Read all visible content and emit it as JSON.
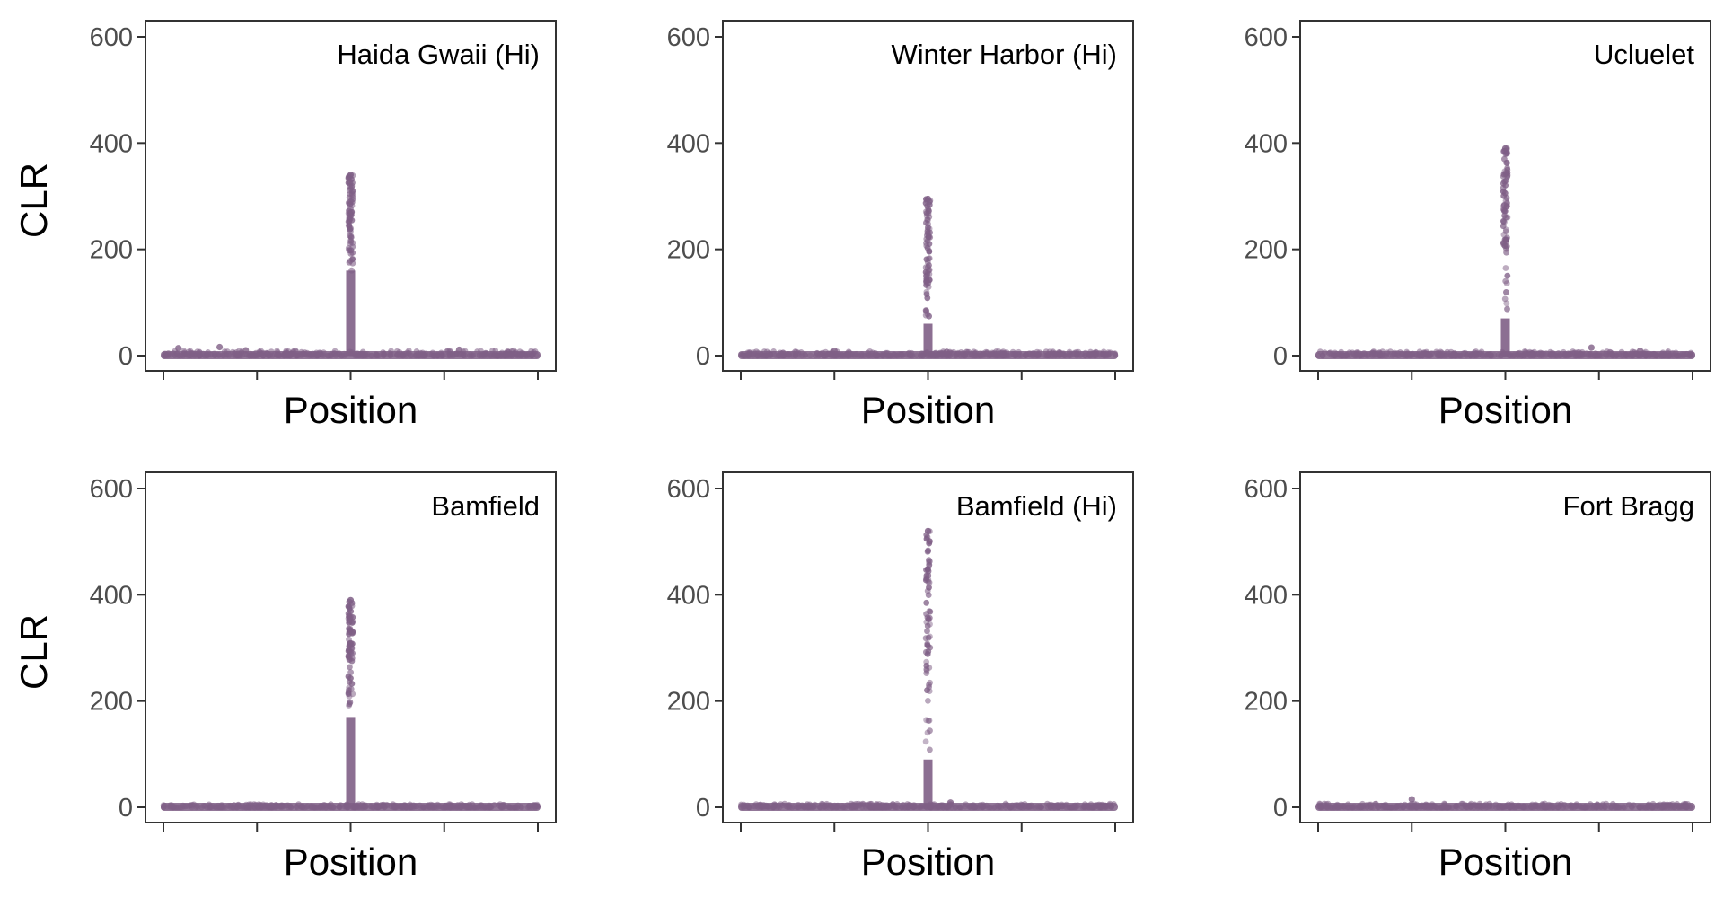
{
  "figure": {
    "point_color": "#7f5f86",
    "frame_color": "#333333",
    "tick_label_color": "#4d4d4d"
  },
  "chart_data": [
    {
      "type": "scatter",
      "title": "Haida Gwaii (Hi)",
      "xlabel": "Position",
      "ylabel": "CLR",
      "ylim": [
        0,
        630
      ],
      "y_ticks": [
        "0",
        "200",
        "400",
        "600"
      ],
      "x_tick_labels": [],
      "grid": false,
      "baseline_max": 10,
      "peak": {
        "position": 0.5,
        "max": 340,
        "dense_to": 160
      },
      "outliers": [
        {
          "x": 0.04,
          "y": 14
        },
        {
          "x": 0.15,
          "y": 16
        },
        {
          "x": 0.22,
          "y": 10
        },
        {
          "x": 0.79,
          "y": 11
        }
      ]
    },
    {
      "type": "scatter",
      "title": "Winter Harbor (Hi)",
      "xlabel": "Position",
      "ylabel": "",
      "ylim": [
        0,
        630
      ],
      "y_ticks": [
        "0",
        "200",
        "400",
        "600"
      ],
      "x_tick_labels": [],
      "grid": false,
      "baseline_max": 8,
      "peak": {
        "position": 0.5,
        "max": 295,
        "dense_to": 60
      },
      "outliers": [
        {
          "x": 0.25,
          "y": 9
        },
        {
          "x": 0.55,
          "y": 7
        }
      ]
    },
    {
      "type": "scatter",
      "title": "Ucluelet",
      "xlabel": "Position",
      "ylabel": "",
      "ylim": [
        0,
        630
      ],
      "y_ticks": [
        "0",
        "200",
        "400",
        "600"
      ],
      "x_tick_labels": [],
      "grid": false,
      "baseline_max": 8,
      "peak": {
        "position": 0.5,
        "max": 390,
        "dense_to": 70
      },
      "outliers": [
        {
          "x": 0.73,
          "y": 15
        },
        {
          "x": 0.86,
          "y": 9
        }
      ]
    },
    {
      "type": "scatter",
      "title": "Bamfield",
      "xlabel": "Position",
      "ylabel": "CLR",
      "ylim": [
        0,
        630
      ],
      "y_ticks": [
        "0",
        "200",
        "400",
        "600"
      ],
      "x_tick_labels": [],
      "grid": false,
      "baseline_max": 6,
      "peak": {
        "position": 0.5,
        "max": 390,
        "dense_to": 170
      },
      "outliers": []
    },
    {
      "type": "scatter",
      "title": "Bamfield (Hi)",
      "xlabel": "Position",
      "ylabel": "",
      "ylim": [
        0,
        630
      ],
      "y_ticks": [
        "0",
        "200",
        "400",
        "600"
      ],
      "x_tick_labels": [],
      "grid": false,
      "baseline_max": 7,
      "peak": {
        "position": 0.5,
        "max": 520,
        "dense_to": 90
      },
      "outliers": [
        {
          "x": 0.56,
          "y": 9
        }
      ]
    },
    {
      "type": "scatter",
      "title": "Fort Bragg",
      "xlabel": "Position",
      "ylabel": "",
      "ylim": [
        0,
        630
      ],
      "y_ticks": [
        "0",
        "200",
        "400",
        "600"
      ],
      "x_tick_labels": [],
      "grid": false,
      "baseline_max": 7,
      "peak": null,
      "outliers": [
        {
          "x": 0.25,
          "y": 15
        }
      ]
    }
  ]
}
